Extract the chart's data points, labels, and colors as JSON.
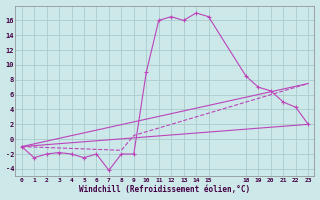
{
  "xlabel": "Windchill (Refroidissement éolien,°C)",
  "background_color": "#cce8e8",
  "grid_color": "#aacccc",
  "line_color": "#bb44bb",
  "x_ticks": [
    0,
    1,
    2,
    3,
    4,
    5,
    6,
    7,
    8,
    9,
    10,
    11,
    12,
    13,
    14,
    15,
    18,
    19,
    20,
    21,
    22,
    23
  ],
  "ylim": [
    -5,
    18
  ],
  "xlim": [
    -0.5,
    23.5
  ],
  "yticks": [
    -4,
    -2,
    0,
    2,
    4,
    6,
    8,
    10,
    12,
    14,
    16
  ],
  "series1_x": [
    0,
    1,
    2,
    3,
    4,
    5,
    6,
    7,
    8,
    9,
    10,
    11,
    12,
    13,
    14,
    15,
    18,
    19,
    20,
    21,
    22,
    23
  ],
  "series1_y": [
    -1,
    -2.5,
    -2,
    -1.8,
    -2,
    -2.5,
    -2,
    -4.2,
    -2,
    -2,
    9,
    16,
    16.5,
    16,
    17,
    16.5,
    8.5,
    7,
    6.5,
    5,
    4.3,
    2
  ],
  "series2_x": [
    0,
    23
  ],
  "series2_y": [
    -1,
    2
  ],
  "series3_x": [
    0,
    23
  ],
  "series3_y": [
    -1,
    7.5
  ],
  "series4_x": [
    0,
    8,
    9,
    23
  ],
  "series4_y": [
    -1,
    -1.5,
    0.5,
    7.5
  ]
}
